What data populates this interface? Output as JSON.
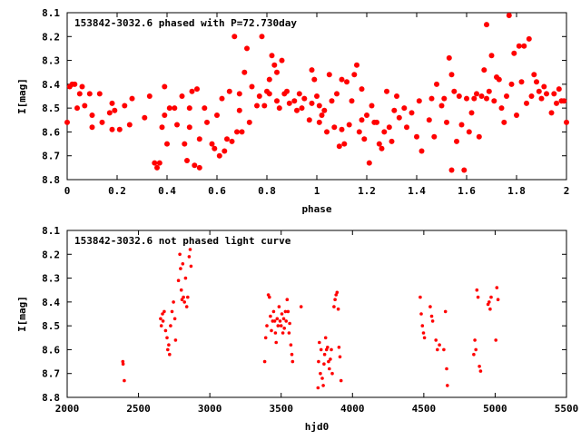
{
  "chart_data": [
    {
      "type": "scatter",
      "title": "153842-3032.6 phased with P=72.730day",
      "xlabel": "phase",
      "ylabel": "I[mag]",
      "xlim": [
        0,
        2
      ],
      "ylim": [
        8.1,
        8.8
      ],
      "y_inverted": true,
      "grid": false,
      "marker_color": "#ff0000",
      "marker": "filled-circle",
      "x_ticks": [
        "0",
        "0.2",
        "0.4",
        "0.6",
        "0.8",
        "1",
        "1.2",
        "1.4",
        "1.6",
        "1.8",
        "2"
      ],
      "y_ticks": [
        "8.1",
        "8.2",
        "8.3",
        "8.4",
        "8.5",
        "8.6",
        "8.7",
        "8.8"
      ],
      "points": [
        [
          0.0,
          8.56
        ],
        [
          0.01,
          8.41
        ],
        [
          0.02,
          8.4
        ],
        [
          0.03,
          8.4
        ],
        [
          0.04,
          8.5
        ],
        [
          0.05,
          8.44
        ],
        [
          0.06,
          8.41
        ],
        [
          0.07,
          8.49
        ],
        [
          0.09,
          8.44
        ],
        [
          0.1,
          8.53
        ],
        [
          0.1,
          8.58
        ],
        [
          0.13,
          8.44
        ],
        [
          0.14,
          8.56
        ],
        [
          0.17,
          8.52
        ],
        [
          0.18,
          8.59
        ],
        [
          0.18,
          8.48
        ],
        [
          0.19,
          8.51
        ],
        [
          0.21,
          8.59
        ],
        [
          0.23,
          8.49
        ],
        [
          0.25,
          8.57
        ],
        [
          0.26,
          8.46
        ],
        [
          0.31,
          8.54
        ],
        [
          0.33,
          8.45
        ],
        [
          0.35,
          8.73
        ],
        [
          0.36,
          8.75
        ],
        [
          0.37,
          8.73
        ],
        [
          0.38,
          8.58
        ],
        [
          0.39,
          8.41
        ],
        [
          0.39,
          8.53
        ],
        [
          0.4,
          8.65
        ],
        [
          0.41,
          8.5
        ],
        [
          0.43,
          8.5
        ],
        [
          0.44,
          8.57
        ],
        [
          0.46,
          8.45
        ],
        [
          0.47,
          8.65
        ],
        [
          0.48,
          8.72
        ],
        [
          0.49,
          8.5
        ],
        [
          0.49,
          8.58
        ],
        [
          0.5,
          8.43
        ],
        [
          0.51,
          8.74
        ],
        [
          0.52,
          8.42
        ],
        [
          0.53,
          8.75
        ],
        [
          0.53,
          8.63
        ],
        [
          0.55,
          8.5
        ],
        [
          0.56,
          8.56
        ],
        [
          0.58,
          8.65
        ],
        [
          0.59,
          8.67
        ],
        [
          0.6,
          8.53
        ],
        [
          0.61,
          8.7
        ],
        [
          0.62,
          8.46
        ],
        [
          0.63,
          8.68
        ],
        [
          0.64,
          8.63
        ],
        [
          0.65,
          8.43
        ],
        [
          0.66,
          8.64
        ],
        [
          0.67,
          8.2
        ],
        [
          0.68,
          8.6
        ],
        [
          0.69,
          8.44
        ],
        [
          0.69,
          8.51
        ],
        [
          0.7,
          8.6
        ],
        [
          0.71,
          8.35
        ],
        [
          0.72,
          8.25
        ],
        [
          0.73,
          8.56
        ],
        [
          0.74,
          8.41
        ],
        [
          0.76,
          8.49
        ],
        [
          0.77,
          8.45
        ],
        [
          0.78,
          8.2
        ],
        [
          0.79,
          8.49
        ],
        [
          0.8,
          8.43
        ],
        [
          0.81,
          8.38
        ],
        [
          0.81,
          8.44
        ],
        [
          0.82,
          8.28
        ],
        [
          0.83,
          8.32
        ],
        [
          0.84,
          8.35
        ],
        [
          0.84,
          8.47
        ],
        [
          0.85,
          8.5
        ],
        [
          0.86,
          8.3
        ],
        [
          0.87,
          8.44
        ],
        [
          0.88,
          8.43
        ],
        [
          0.89,
          8.48
        ],
        [
          0.91,
          8.47
        ],
        [
          0.92,
          8.51
        ],
        [
          0.93,
          8.44
        ],
        [
          0.94,
          8.5
        ],
        [
          0.95,
          8.46
        ],
        [
          0.97,
          8.55
        ],
        [
          0.98,
          8.34
        ],
        [
          0.98,
          8.48
        ],
        [
          0.99,
          8.38
        ],
        [
          1.0,
          8.45
        ],
        [
          1.01,
          8.49
        ],
        [
          1.01,
          8.56
        ],
        [
          1.02,
          8.53
        ],
        [
          1.03,
          8.51
        ],
        [
          1.04,
          8.6
        ],
        [
          1.05,
          8.36
        ],
        [
          1.06,
          8.47
        ],
        [
          1.07,
          8.58
        ],
        [
          1.08,
          8.44
        ],
        [
          1.09,
          8.66
        ],
        [
          1.1,
          8.38
        ],
        [
          1.1,
          8.59
        ],
        [
          1.11,
          8.65
        ],
        [
          1.12,
          8.39
        ],
        [
          1.13,
          8.57
        ],
        [
          1.14,
          8.47
        ],
        [
          1.15,
          8.36
        ],
        [
          1.16,
          8.32
        ],
        [
          1.17,
          8.6
        ],
        [
          1.18,
          8.42
        ],
        [
          1.18,
          8.55
        ],
        [
          1.19,
          8.63
        ],
        [
          1.2,
          8.53
        ],
        [
          1.21,
          8.73
        ],
        [
          1.22,
          8.49
        ],
        [
          1.23,
          8.56
        ],
        [
          1.24,
          8.56
        ],
        [
          1.25,
          8.65
        ],
        [
          1.26,
          8.67
        ],
        [
          1.27,
          8.6
        ],
        [
          1.28,
          8.43
        ],
        [
          1.29,
          8.58
        ],
        [
          1.3,
          8.64
        ],
        [
          1.31,
          8.51
        ],
        [
          1.32,
          8.45
        ],
        [
          1.33,
          8.54
        ],
        [
          1.35,
          8.5
        ],
        [
          1.36,
          8.58
        ],
        [
          1.38,
          8.52
        ],
        [
          1.4,
          8.62
        ],
        [
          1.41,
          8.47
        ],
        [
          1.42,
          8.68
        ],
        [
          1.45,
          8.55
        ],
        [
          1.46,
          8.46
        ],
        [
          1.47,
          8.62
        ],
        [
          1.48,
          8.4
        ],
        [
          1.5,
          8.49
        ],
        [
          1.51,
          8.46
        ],
        [
          1.52,
          8.56
        ],
        [
          1.53,
          8.29
        ],
        [
          1.54,
          8.36
        ],
        [
          1.54,
          8.76
        ],
        [
          1.55,
          8.43
        ],
        [
          1.56,
          8.64
        ],
        [
          1.57,
          8.45
        ],
        [
          1.58,
          8.57
        ],
        [
          1.59,
          8.76
        ],
        [
          1.6,
          8.46
        ],
        [
          1.61,
          8.6
        ],
        [
          1.62,
          8.52
        ],
        [
          1.63,
          8.46
        ],
        [
          1.64,
          8.44
        ],
        [
          1.65,
          8.62
        ],
        [
          1.66,
          8.45
        ],
        [
          1.67,
          8.34
        ],
        [
          1.68,
          8.46
        ],
        [
          1.68,
          8.15
        ],
        [
          1.69,
          8.43
        ],
        [
          1.7,
          8.28
        ],
        [
          1.71,
          8.47
        ],
        [
          1.72,
          8.37
        ],
        [
          1.73,
          8.38
        ],
        [
          1.74,
          8.5
        ],
        [
          1.75,
          8.56
        ],
        [
          1.76,
          8.45
        ],
        [
          1.77,
          8.08
        ],
        [
          1.78,
          8.4
        ],
        [
          1.79,
          8.27
        ],
        [
          1.8,
          8.53
        ],
        [
          1.81,
          8.24
        ],
        [
          1.82,
          8.39
        ],
        [
          1.83,
          8.24
        ],
        [
          1.84,
          8.48
        ],
        [
          1.85,
          8.21
        ],
        [
          1.86,
          8.45
        ],
        [
          1.87,
          8.36
        ],
        [
          1.88,
          8.39
        ],
        [
          1.89,
          8.43
        ],
        [
          1.9,
          8.46
        ],
        [
          1.91,
          8.41
        ],
        [
          1.92,
          8.44
        ],
        [
          1.94,
          8.52
        ],
        [
          1.95,
          8.44
        ],
        [
          1.96,
          8.48
        ],
        [
          1.97,
          8.42
        ],
        [
          1.98,
          8.47
        ],
        [
          1.99,
          8.47
        ],
        [
          2.0,
          8.56
        ]
      ]
    },
    {
      "type": "scatter",
      "title": "153842-3032.6 not phased light curve",
      "xlabel": "hjd0",
      "ylabel": "I[mag]",
      "xlim": [
        2000,
        5500
      ],
      "ylim": [
        8.1,
        8.8
      ],
      "y_inverted": true,
      "grid": false,
      "marker_color": "#ff0000",
      "marker": "small-filled-circle",
      "x_ticks": [
        "2000",
        "2500",
        "3000",
        "3500",
        "4000",
        "4500",
        "5000",
        "5500"
      ],
      "y_ticks": [
        "8.1",
        "8.2",
        "8.3",
        "8.4",
        "8.5",
        "8.6",
        "8.7",
        "8.8"
      ],
      "points": [
        [
          2390,
          8.65
        ],
        [
          2392,
          8.66
        ],
        [
          2400,
          8.73
        ],
        [
          2655,
          8.47
        ],
        [
          2660,
          8.5
        ],
        [
          2668,
          8.45
        ],
        [
          2672,
          8.48
        ],
        [
          2680,
          8.44
        ],
        [
          2690,
          8.52
        ],
        [
          2700,
          8.55
        ],
        [
          2705,
          8.6
        ],
        [
          2712,
          8.58
        ],
        [
          2718,
          8.62
        ],
        [
          2725,
          8.5
        ],
        [
          2735,
          8.44
        ],
        [
          2745,
          8.4
        ],
        [
          2755,
          8.47
        ],
        [
          2760,
          8.56
        ],
        [
          2780,
          8.31
        ],
        [
          2790,
          8.2
        ],
        [
          2795,
          8.26
        ],
        [
          2800,
          8.35
        ],
        [
          2805,
          8.39
        ],
        [
          2810,
          8.24
        ],
        [
          2815,
          8.38
        ],
        [
          2822,
          8.4
        ],
        [
          2830,
          8.3
        ],
        [
          2838,
          8.42
        ],
        [
          2845,
          8.38
        ],
        [
          2855,
          8.21
        ],
        [
          2862,
          8.18
        ],
        [
          2868,
          8.25
        ],
        [
          3385,
          8.65
        ],
        [
          3392,
          8.55
        ],
        [
          3400,
          8.5
        ],
        [
          3410,
          8.37
        ],
        [
          3418,
          8.38
        ],
        [
          3425,
          8.46
        ],
        [
          3432,
          8.52
        ],
        [
          3440,
          8.48
        ],
        [
          3447,
          8.44
        ],
        [
          3455,
          8.48
        ],
        [
          3460,
          8.53
        ],
        [
          3465,
          8.57
        ],
        [
          3472,
          8.47
        ],
        [
          3478,
          8.5
        ],
        [
          3485,
          8.42
        ],
        [
          3492,
          8.48
        ],
        [
          3500,
          8.5
        ],
        [
          3505,
          8.45
        ],
        [
          3512,
          8.53
        ],
        [
          3518,
          8.47
        ],
        [
          3522,
          8.51
        ],
        [
          3530,
          8.44
        ],
        [
          3535,
          8.48
        ],
        [
          3542,
          8.39
        ],
        [
          3548,
          8.44
        ],
        [
          3555,
          8.53
        ],
        [
          3560,
          8.49
        ],
        [
          3568,
          8.58
        ],
        [
          3575,
          8.62
        ],
        [
          3580,
          8.65
        ],
        [
          3640,
          8.42
        ],
        [
          3758,
          8.76
        ],
        [
          3762,
          8.65
        ],
        [
          3768,
          8.57
        ],
        [
          3775,
          8.7
        ],
        [
          3780,
          8.6
        ],
        [
          3788,
          8.72
        ],
        [
          3795,
          8.75
        ],
        [
          3800,
          8.66
        ],
        [
          3805,
          8.62
        ],
        [
          3812,
          8.55
        ],
        [
          3818,
          8.6
        ],
        [
          3825,
          8.59
        ],
        [
          3832,
          8.65
        ],
        [
          3838,
          8.68
        ],
        [
          3845,
          8.64
        ],
        [
          3852,
          8.6
        ],
        [
          3858,
          8.7
        ],
        [
          3870,
          8.42
        ],
        [
          3878,
          8.39
        ],
        [
          3885,
          8.37
        ],
        [
          3892,
          8.36
        ],
        [
          3900,
          8.43
        ],
        [
          3905,
          8.59
        ],
        [
          3912,
          8.63
        ],
        [
          3920,
          8.73
        ],
        [
          4475,
          8.38
        ],
        [
          4482,
          8.45
        ],
        [
          4490,
          8.5
        ],
        [
          4498,
          8.53
        ],
        [
          4505,
          8.55
        ],
        [
          4545,
          8.42
        ],
        [
          4555,
          8.46
        ],
        [
          4562,
          8.48
        ],
        [
          4585,
          8.56
        ],
        [
          4595,
          8.6
        ],
        [
          4610,
          8.58
        ],
        [
          4640,
          8.6
        ],
        [
          4652,
          8.44
        ],
        [
          4660,
          8.68
        ],
        [
          4665,
          8.75
        ],
        [
          4850,
          8.62
        ],
        [
          4858,
          8.56
        ],
        [
          4865,
          8.6
        ],
        [
          4872,
          8.35
        ],
        [
          4880,
          8.38
        ],
        [
          4890,
          8.67
        ],
        [
          4898,
          8.69
        ],
        [
          4950,
          8.41
        ],
        [
          4958,
          8.4
        ],
        [
          4965,
          8.43
        ],
        [
          4972,
          8.38
        ],
        [
          5005,
          8.56
        ],
        [
          5012,
          8.34
        ],
        [
          5020,
          8.39
        ]
      ]
    }
  ]
}
